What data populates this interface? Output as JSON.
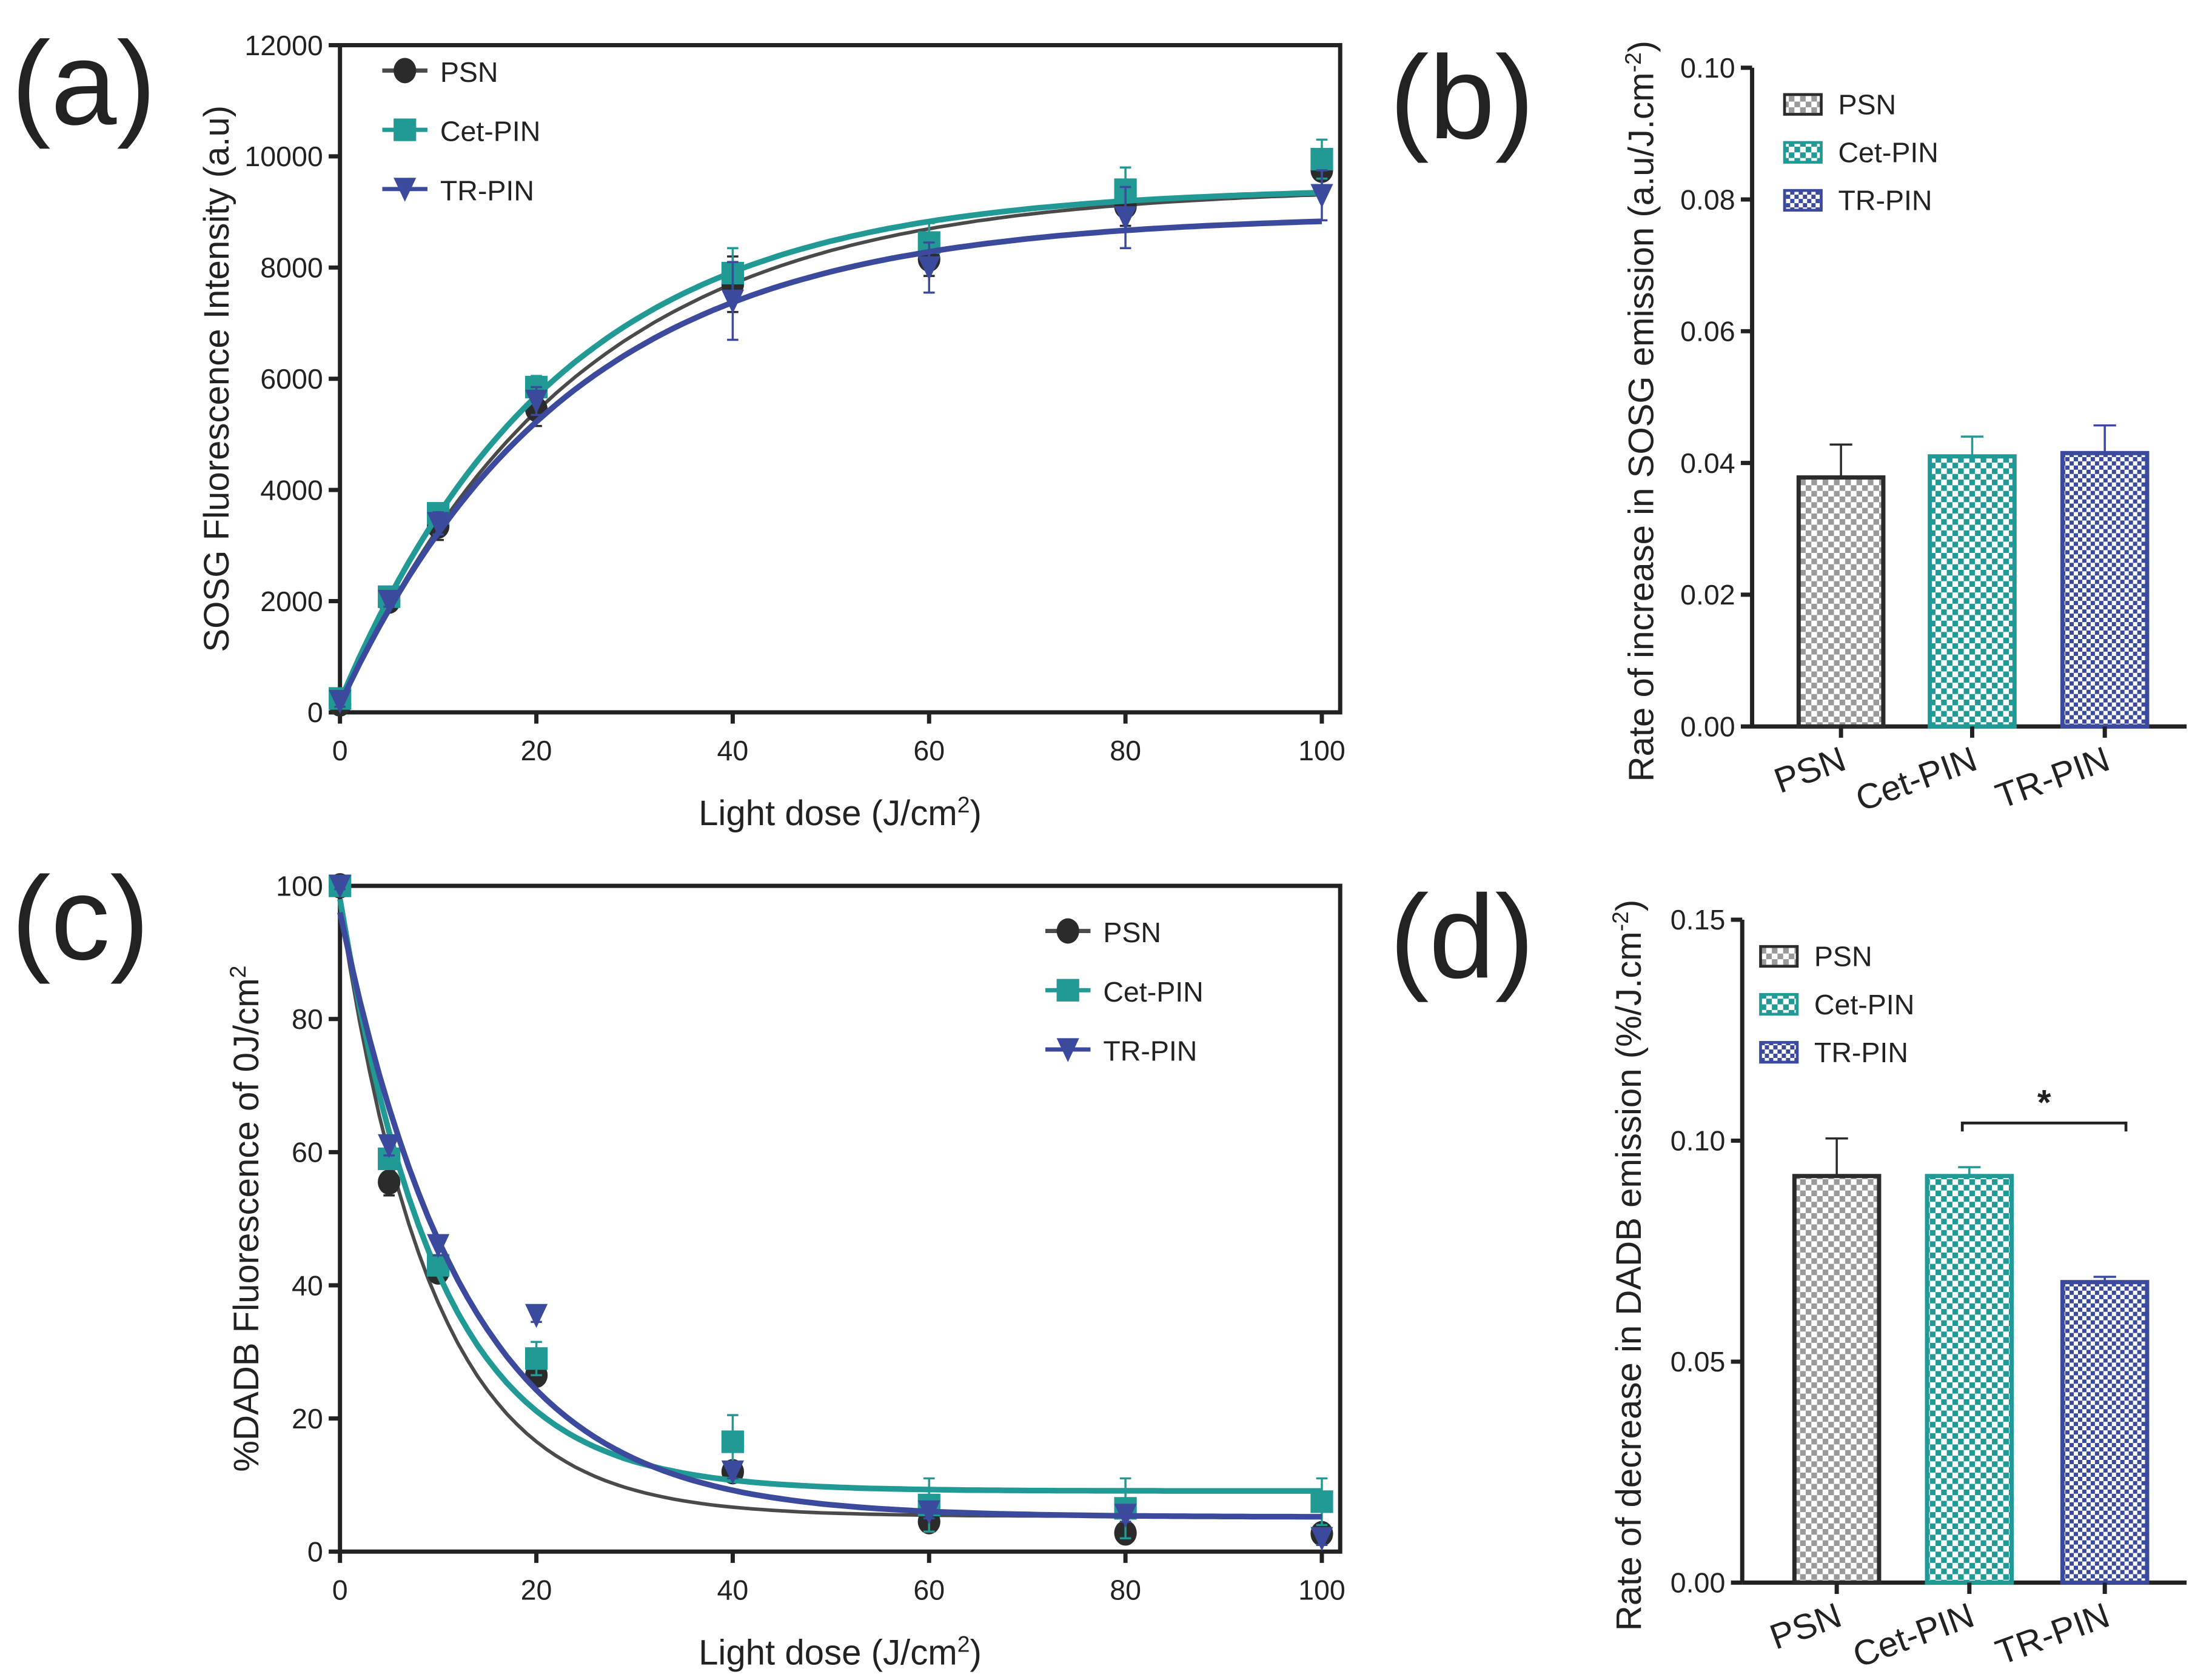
{
  "colors": {
    "PSN": "#2b2b2b",
    "Cet-PIN": "#219a96",
    "TR-PIN": "#3c4a9e",
    "PSN_curve": "#4a4a4a",
    "TR_curve": "#4b5fb0"
  },
  "panels": {
    "a": "(a)",
    "b": "(b)",
    "c": "(c)",
    "d": "(d)"
  },
  "chart_data": [
    {
      "id": "a",
      "type": "line",
      "xlabel": "Light dose (J/cm",
      "xlabel_sup": "2",
      "xlabel_end": ")",
      "ylabel": "SOSG Fluorescence Intensity (a.u)",
      "xlim": [
        0,
        100
      ],
      "ylim": [
        0,
        12000
      ],
      "xticks": [
        0,
        20,
        40,
        60,
        80,
        100
      ],
      "yticks": [
        0,
        2000,
        4000,
        6000,
        8000,
        10000,
        12000
      ],
      "legend": "top-left",
      "x": [
        0,
        5,
        10,
        20,
        40,
        60,
        80,
        100
      ],
      "series": [
        {
          "name": "PSN",
          "marker": "circle",
          "values": [
            150,
            2000,
            3350,
            5450,
            7700,
            8150,
            9100,
            9750
          ],
          "errors": [
            100,
            100,
            250,
            300,
            500,
            300,
            350,
            300
          ],
          "fit": {
            "y0": 100,
            "plateau": 9450,
            "k": 0.042
          }
        },
        {
          "name": "Cet-PIN",
          "marker": "square",
          "values": [
            250,
            2080,
            3580,
            5850,
            7900,
            8450,
            9400,
            9950
          ],
          "errors": [
            100,
            100,
            150,
            200,
            450,
            350,
            400,
            350
          ],
          "fit": {
            "y0": 200,
            "plateau": 9450,
            "k": 0.045
          }
        },
        {
          "name": "TR-PIN",
          "marker": "triangle-down",
          "values": [
            200,
            2000,
            3400,
            5600,
            7400,
            8000,
            8900,
            9300
          ],
          "errors": [
            100,
            100,
            200,
            250,
            700,
            450,
            550,
            450
          ],
          "fit": {
            "y0": 150,
            "plateau": 8950,
            "k": 0.043
          }
        }
      ]
    },
    {
      "id": "b",
      "type": "bar",
      "categories": [
        "PSN",
        "Cet-PIN",
        "TR-PIN"
      ],
      "values": [
        0.0378,
        0.041,
        0.0415
      ],
      "errors": [
        0.005,
        0.003,
        0.0042
      ],
      "ylabel": "Rate of increase in SOSG emission (a.u/J.cm",
      "ylabel_sup": "-2",
      "ylabel_end": ")",
      "ylim": [
        0,
        0.1
      ],
      "yticks": [
        "0.00",
        "0.02",
        "0.04",
        "0.06",
        "0.08",
        "0.10"
      ],
      "legend": "top-left"
    },
    {
      "id": "c",
      "type": "line",
      "xlabel": "Light dose (J/cm",
      "xlabel_sup": "2",
      "xlabel_end": ")",
      "ylabel": "%DADB Fluorescence of 0J/cm",
      "ylabel_sup": "2",
      "xlim": [
        0,
        100
      ],
      "ylim": [
        0,
        100
      ],
      "xticks": [
        0,
        20,
        40,
        60,
        80,
        100
      ],
      "yticks": [
        0,
        20,
        40,
        60,
        80,
        100
      ],
      "legend": "top-right",
      "x": [
        0,
        5,
        10,
        20,
        40,
        60,
        80,
        100
      ],
      "series": [
        {
          "name": "PSN",
          "marker": "circle",
          "values": [
            100,
            55.5,
            42,
            26.5,
            12,
            4.5,
            2.8,
            2.7
          ],
          "errors": [
            0.5,
            2,
            1.5,
            1.5,
            1,
            1,
            0.5,
            0.5
          ],
          "fit": {
            "y0": 97,
            "plateau": 5.3,
            "k": 0.105
          }
        },
        {
          "name": "Cet-PIN",
          "marker": "square",
          "values": [
            100,
            59,
            43,
            29,
            16.5,
            7,
            6.5,
            7.5
          ],
          "errors": [
            0.5,
            1.5,
            1.5,
            2.5,
            4,
            4,
            4.5,
            3.5
          ],
          "fit": {
            "y0": 98,
            "plateau": 9.1,
            "k": 0.1
          }
        },
        {
          "name": "TR-PIN",
          "marker": "triangle-down",
          "values": [
            100,
            61,
            46,
            35.5,
            12,
            6,
            5.5,
            2
          ],
          "errors": [
            0.5,
            1.5,
            1.5,
            1,
            1,
            1,
            1,
            1
          ],
          "fit": {
            "y0": 96,
            "plateau": 5.2,
            "k": 0.078
          }
        }
      ]
    },
    {
      "id": "d",
      "type": "bar",
      "categories": [
        "PSN",
        "Cet-PIN",
        "TR-PIN"
      ],
      "values": [
        0.092,
        0.092,
        0.068
      ],
      "errors": [
        0.0085,
        0.002,
        0.0012
      ],
      "ylabel": "Rate of decrease in DADB emission (%/J.cm",
      "ylabel_sup": "-2",
      "ylabel_end": ")",
      "ylim": [
        0,
        0.15
      ],
      "yticks": [
        "0.00",
        "0.05",
        "0.10",
        "0.15"
      ],
      "legend": "top-left",
      "annotation": {
        "text": "*",
        "from": "Cet-PIN",
        "to": "TR-PIN",
        "y": 0.104
      }
    }
  ]
}
